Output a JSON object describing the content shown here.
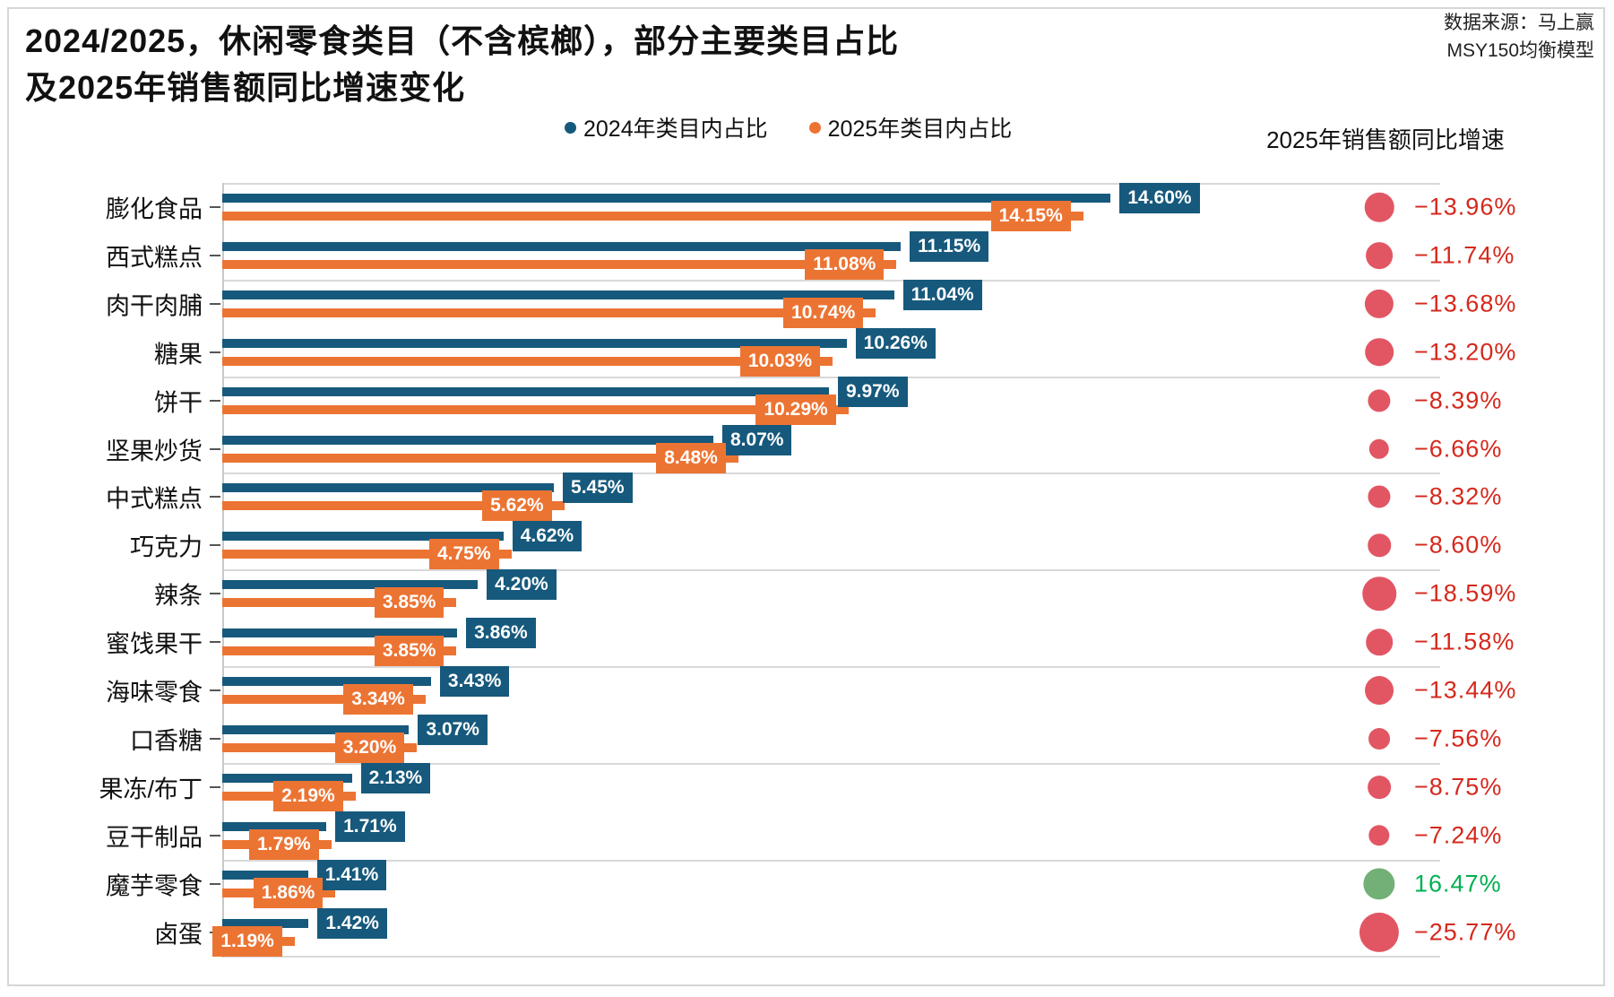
{
  "title": {
    "line1": "2024/2025，休闲零食类目（不含槟榔），部分主要类目占比",
    "line2": "及2025年销售额同比增速变化"
  },
  "source": {
    "line1": "数据来源：马上赢",
    "line2": "MSY150均衡模型"
  },
  "legend": [
    {
      "label": "2024年类目内占比",
      "color": "#16597c"
    },
    {
      "label": "2025年类目内占比",
      "color": "#ec7433"
    }
  ],
  "growth_header": "2025年销售额同比增速",
  "colors": {
    "bar_2024": "#16597c",
    "bar_2025": "#ec7433",
    "bubble_negative": "#e25663",
    "bubble_positive": "#72b077",
    "text_negative": "#d5281c",
    "text_positive": "#00b050",
    "gridline": "#d9d9d9"
  },
  "chart_data": {
    "type": "bar",
    "orientation": "horizontal",
    "title": "2024/2025，休闲零食类目（不含槟榔），部分主要类目占比及2025年销售额同比增速变化",
    "categories": [
      "膨化食品",
      "西式糕点",
      "肉干肉脯",
      "糖果",
      "饼干",
      "坚果炒货",
      "中式糕点",
      "巧克力",
      "辣条",
      "蜜饯果干",
      "海味零食",
      "口香糖",
      "果冻/布丁",
      "豆干制品",
      "魔芋零食",
      "卤蛋"
    ],
    "series": [
      {
        "name": "2024年类目内占比",
        "color": "#16597c",
        "values": [
          14.6,
          11.15,
          11.04,
          10.26,
          9.97,
          8.07,
          5.45,
          4.62,
          4.2,
          3.86,
          3.43,
          3.07,
          2.13,
          1.71,
          1.41,
          1.42
        ]
      },
      {
        "name": "2025年类目内占比",
        "color": "#ec7433",
        "values": [
          14.15,
          11.08,
          10.74,
          10.03,
          10.29,
          8.48,
          5.62,
          4.75,
          3.85,
          3.85,
          3.34,
          3.2,
          2.19,
          1.79,
          1.86,
          1.19
        ]
      }
    ],
    "bar_labels_2024": [
      "14.60%",
      "11.15%",
      "11.04%",
      "10.26%",
      "9.97%",
      "8.07%",
      "5.45%",
      "4.62%",
      "4.20%",
      "3.86%",
      "3.43%",
      "3.07%",
      "2.13%",
      "1.71%",
      "1.41%",
      "1.42%"
    ],
    "bar_labels_2025": [
      "14.15%",
      "11.08%",
      "10.74%",
      "10.03%",
      "10.29%",
      "8.48%",
      "5.62%",
      "4.75%",
      "3.85%",
      "3.85%",
      "3.34%",
      "3.20%",
      "2.19%",
      "1.79%",
      "1.86%",
      "1.19%"
    ],
    "growth_series_name": "2025年销售额同比增速",
    "growth": [
      -13.96,
      -11.74,
      -13.68,
      -13.2,
      -8.39,
      -6.66,
      -8.32,
      -8.6,
      -18.59,
      -11.58,
      -13.44,
      -7.56,
      -8.75,
      -7.24,
      16.47,
      -25.77
    ],
    "growth_labels": [
      "−13.96%",
      "−11.74%",
      "−13.68%",
      "−13.20%",
      "−8.39%",
      "−6.66%",
      "−8.32%",
      "−8.60%",
      "−18.59%",
      "−11.58%",
      "−13.44%",
      "−7.56%",
      "−8.75%",
      "−7.24%",
      "16.47%",
      "−25.77%"
    ],
    "value_unit": "%",
    "xlim": [
      0,
      16
    ],
    "grid": "horizontal-pair-separators",
    "legend_position": "top"
  }
}
